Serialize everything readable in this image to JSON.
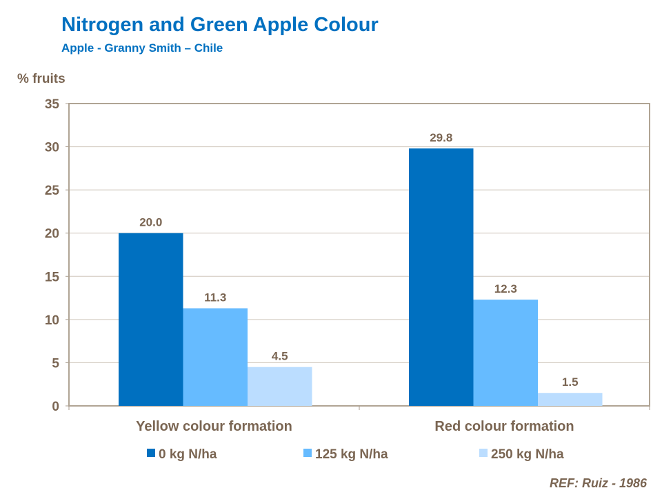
{
  "title": "Nitrogen and Green Apple Colour",
  "subtitle": "Apple - Granny Smith – Chile",
  "reference": "REF: Ruiz - 1986",
  "chart_data": {
    "type": "bar",
    "ylabel": "% fruits",
    "ylim": [
      0,
      35
    ],
    "yticks": [
      0,
      5,
      10,
      15,
      20,
      25,
      30,
      35
    ],
    "grid": true,
    "legend_position": "bottom",
    "categories": [
      "Yellow colour formation",
      "Red colour formation"
    ],
    "series": [
      {
        "name": "0 kg N/ha",
        "color": "#0070C0",
        "values": [
          20.0,
          29.8
        ],
        "labels": [
          "20.0",
          "29.8"
        ]
      },
      {
        "name": "125 kg N/ha",
        "color": "#66BBFF",
        "values": [
          11.3,
          12.3
        ],
        "labels": [
          "11.3",
          "12.3"
        ]
      },
      {
        "name": "250 kg N/ha",
        "color": "#BBDDFF",
        "values": [
          4.5,
          1.5
        ],
        "labels": [
          "4.5",
          "1.5"
        ]
      }
    ]
  }
}
